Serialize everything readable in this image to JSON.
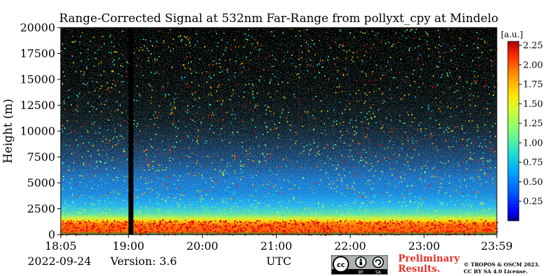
{
  "chart_data": {
    "type": "heatmap",
    "title": "Range-Corrected Signal at 532nm Far-Range from pollyxt_cpy at Mindelo",
    "ylabel": "Height (m)",
    "xlabel": "UTC",
    "ylim": [
      0,
      20000
    ],
    "y_ticks": [
      0,
      2500,
      5000,
      7500,
      10000,
      12500,
      15000,
      17500,
      20000
    ],
    "x_range": [
      "18:05",
      "23:59"
    ],
    "x_tick_labels": [
      "18:05",
      "19:00",
      "20:00",
      "21:00",
      "22:00",
      "23:00",
      "23:59"
    ],
    "colorbar": {
      "unit": "[a.u.]",
      "range": [
        0,
        2.3
      ],
      "ticks": [
        "0.25",
        "0.50",
        "0.75",
        "1.00",
        "1.25",
        "1.50",
        "1.75",
        "2.00",
        "2.25"
      ],
      "colormap": "jet"
    },
    "data_gap": {
      "from": "19:00",
      "to": "19:04"
    }
  },
  "footer": {
    "date": "2022-09-24",
    "version": "Version: 3.6",
    "preliminary_line1": "Preliminary",
    "preliminary_line2": "Results.",
    "copyright_line1": "© TROPOS & OSCM 2023.",
    "copyright_line2": "CC BY SA 4.0 License."
  },
  "license_badge": {
    "cc": "cc",
    "by": "BY",
    "sa": "SA"
  }
}
